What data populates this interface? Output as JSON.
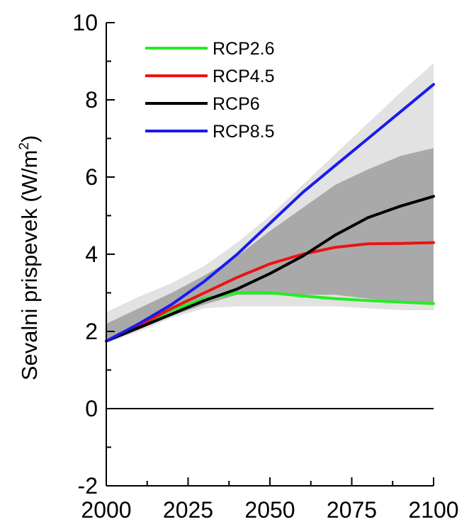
{
  "chart_data": {
    "type": "line",
    "title": "",
    "xlabel": "",
    "ylabel": "Sevalni prispevek (W/m²)",
    "ylabel_parts": {
      "main": "Sevalni prispevek (W/m",
      "superscript": "2",
      "close": ")"
    },
    "xlim": [
      2000,
      2100
    ],
    "ylim": [
      -2,
      10
    ],
    "x_ticks": [
      2000,
      2025,
      2050,
      2075,
      2100
    ],
    "x_tick_labels": [
      "2000",
      "2025",
      "2050",
      "2075",
      "2100"
    ],
    "y_ticks": [
      -2,
      0,
      2,
      4,
      6,
      8,
      10
    ],
    "y_tick_labels": [
      "-2",
      "0",
      "2",
      "4",
      "6",
      "8",
      "10"
    ],
    "zero_line": true,
    "grid": false,
    "legend_position": "top-left",
    "x": [
      2000,
      2010,
      2020,
      2030,
      2040,
      2050,
      2060,
      2070,
      2080,
      2090,
      2100
    ],
    "series": [
      {
        "name": "RCP2.6",
        "color": "#22ee22",
        "values": [
          1.75,
          2.15,
          2.55,
          2.85,
          3.0,
          3.0,
          2.92,
          2.85,
          2.8,
          2.76,
          2.72
        ]
      },
      {
        "name": "RCP4.5",
        "color": "#ee1111",
        "values": [
          1.75,
          2.15,
          2.6,
          3.0,
          3.4,
          3.75,
          4.0,
          4.18,
          4.27,
          4.28,
          4.3
        ]
      },
      {
        "name": "RCP6",
        "color": "#000000",
        "values": [
          1.75,
          2.1,
          2.45,
          2.8,
          3.1,
          3.5,
          3.95,
          4.5,
          4.95,
          5.25,
          5.5
        ]
      },
      {
        "name": "RCP8.5",
        "color": "#1a1aee",
        "values": [
          1.75,
          2.2,
          2.7,
          3.3,
          4.0,
          4.8,
          5.6,
          6.3,
          7.0,
          7.7,
          8.4
        ]
      }
    ],
    "bands": [
      {
        "kind": "outer-range",
        "color": "#e2e2e2",
        "lower": [
          1.7,
          2.0,
          2.35,
          2.6,
          2.65,
          2.65,
          2.65,
          2.65,
          2.6,
          2.55,
          2.55
        ],
        "upper": [
          2.5,
          2.9,
          3.25,
          3.7,
          4.3,
          5.0,
          5.8,
          6.6,
          7.4,
          8.2,
          8.95
        ]
      },
      {
        "kind": "inner-range",
        "color": "#a9a9a9",
        "lower": [
          1.8,
          2.05,
          2.4,
          2.7,
          2.95,
          2.95,
          2.95,
          2.95,
          2.85,
          2.78,
          2.7
        ],
        "upper": [
          2.2,
          2.6,
          3.0,
          3.45,
          3.95,
          4.6,
          5.2,
          5.8,
          6.2,
          6.55,
          6.75
        ]
      }
    ]
  }
}
